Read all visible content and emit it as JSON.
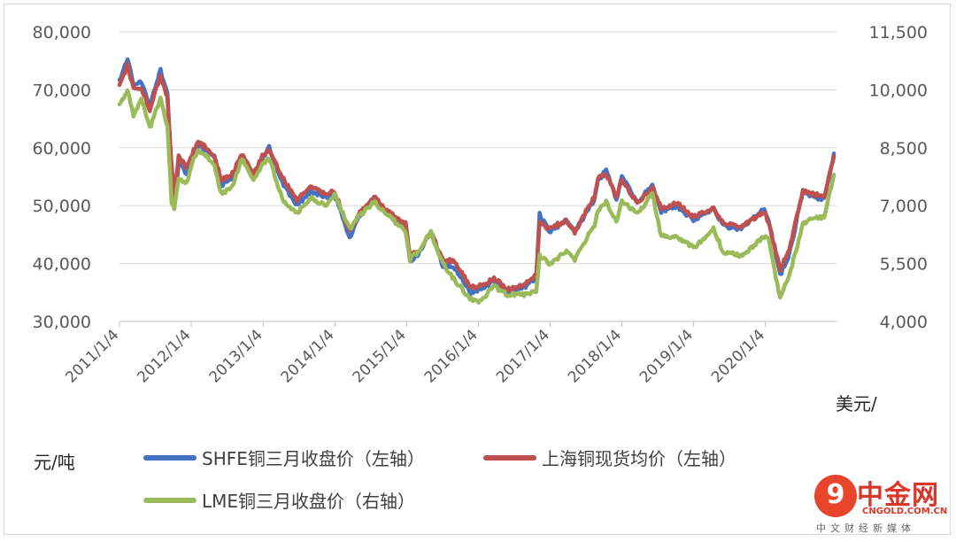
{
  "chart_data": {
    "type": "line",
    "left_axis": {
      "unit": "元/吨",
      "ylim": [
        30000,
        80000
      ],
      "ticks": [
        "80,000",
        "70,000",
        "60,000",
        "50,000",
        "40,000",
        "30,000"
      ],
      "tick_values": [
        80000,
        70000,
        60000,
        50000,
        40000,
        30000
      ]
    },
    "right_axis": {
      "unit": "美元/",
      "ylim": [
        4000,
        11500
      ],
      "ticks": [
        "11,500",
        "10,000",
        "8,500",
        "7,000",
        "5,500",
        "4,000"
      ],
      "tick_values": [
        11500,
        10000,
        8500,
        7000,
        5500,
        4000
      ]
    },
    "x_ticks": [
      "2011/1/4",
      "2012/1/4",
      "2013/1/4",
      "2014/1/4",
      "2015/1/4",
      "2016/1/4",
      "2017/1/4",
      "2018/1/4",
      "2019/1/4",
      "2020/1/4"
    ],
    "x_range": [
      "2011/1/4",
      "2020/12/31"
    ],
    "grid": "horizontal",
    "legend_position": "bottom",
    "series": [
      {
        "name": "SHFE铜三月收盘价（左轴）",
        "axis": "left",
        "color": "#4472c4",
        "points": [
          [
            "2011/1/4",
            71500
          ],
          [
            "2011/2/14",
            75500
          ],
          [
            "2011/3/16",
            71000
          ],
          [
            "2011/4/25",
            71500
          ],
          [
            "2011/6/7",
            67000
          ],
          [
            "2011/7/18",
            72000
          ],
          [
            "2011/8/1",
            73300
          ],
          [
            "2011/9/5",
            69500
          ],
          [
            "2011/9/26",
            56000
          ],
          [
            "2011/10/10",
            50000
          ],
          [
            "2011/11/1",
            57500
          ],
          [
            "2011/12/12",
            55500
          ],
          [
            "2012/1/16",
            59000
          ],
          [
            "2012/2/8",
            60500
          ],
          [
            "2012/3/20",
            59500
          ],
          [
            "2012/5/2",
            58500
          ],
          [
            "2012/6/4",
            53500
          ],
          [
            "2012/8/1",
            55000
          ],
          [
            "2012/9/18",
            58500
          ],
          [
            "2012/11/16",
            55000
          ],
          [
            "2013/1/7",
            58500
          ],
          [
            "2013/2/4",
            60000
          ],
          [
            "2013/4/18",
            53500
          ],
          [
            "2013/6/25",
            50000
          ],
          [
            "2013/9/2",
            52500
          ],
          [
            "2013/11/19",
            51500
          ],
          [
            "2014/1/2",
            52000
          ],
          [
            "2014/3/20",
            44500
          ],
          [
            "2014/5/5",
            48000
          ],
          [
            "2014/7/22",
            51500
          ],
          [
            "2014/9/25",
            48500
          ],
          [
            "2014/12/30",
            46500
          ],
          [
            "2015/1/21",
            40500
          ],
          [
            "2015/3/2",
            41500
          ],
          [
            "2015/5/8",
            45500
          ],
          [
            "2015/7/8",
            39500
          ],
          [
            "2015/9/1",
            39500
          ],
          [
            "2015/11/24",
            35000
          ],
          [
            "2016/1/6",
            35500
          ],
          [
            "2016/3/24",
            37000
          ],
          [
            "2016/5/31",
            35000
          ],
          [
            "2016/9/1",
            36000
          ],
          [
            "2016/10/25",
            37500
          ],
          [
            "2016/11/11",
            48500
          ],
          [
            "2016/12/30",
            45500
          ],
          [
            "2017/3/27",
            47500
          ],
          [
            "2017/5/9",
            45500
          ],
          [
            "2017/8/16",
            51000
          ],
          [
            "2017/9/5",
            54500
          ],
          [
            "2017/10/16",
            56000
          ],
          [
            "2017/12/7",
            51000
          ],
          [
            "2018/1/4",
            55000
          ],
          [
            "2018/3/23",
            50500
          ],
          [
            "2018/6/8",
            53500
          ],
          [
            "2018/7/23",
            49000
          ],
          [
            "2018/10/10",
            50000
          ],
          [
            "2019/1/3",
            47500
          ],
          [
            "2019/4/15",
            49500
          ],
          [
            "2019/6/3",
            46500
          ],
          [
            "2019/9/3",
            46000
          ],
          [
            "2019/12/30",
            49500
          ],
          [
            "2020/1/21",
            47500
          ],
          [
            "2020/3/19",
            38000
          ],
          [
            "2020/5/5",
            41500
          ],
          [
            "2020/7/13",
            52500
          ],
          [
            "2020/9/8",
            51500
          ],
          [
            "2020/10/29",
            51000
          ],
          [
            "2020/12/18",
            59000
          ]
        ]
      },
      {
        "name": "上海铜现货均价（左轴）",
        "axis": "left",
        "color": "#c0504d",
        "points": [
          [
            "2011/1/4",
            70500
          ],
          [
            "2011/2/14",
            74500
          ],
          [
            "2011/3/16",
            70000
          ],
          [
            "2011/4/25",
            70500
          ],
          [
            "2011/6/7",
            66500
          ],
          [
            "2011/7/18",
            71000
          ],
          [
            "2011/8/1",
            72500
          ],
          [
            "2011/9/5",
            68500
          ],
          [
            "2011/9/26",
            57000
          ],
          [
            "2011/10/10",
            51500
          ],
          [
            "2011/11/1",
            58500
          ],
          [
            "2011/12/12",
            56500
          ],
          [
            "2012/1/16",
            59500
          ],
          [
            "2012/2/8",
            61000
          ],
          [
            "2012/3/20",
            60000
          ],
          [
            "2012/5/2",
            58500
          ],
          [
            "2012/6/4",
            54500
          ],
          [
            "2012/8/1",
            55500
          ],
          [
            "2012/9/18",
            59000
          ],
          [
            "2012/11/16",
            55500
          ],
          [
            "2013/1/7",
            59000
          ],
          [
            "2013/2/4",
            59500
          ],
          [
            "2013/4/18",
            54500
          ],
          [
            "2013/6/25",
            51000
          ],
          [
            "2013/9/2",
            53500
          ],
          [
            "2013/11/19",
            52000
          ],
          [
            "2014/1/2",
            52500
          ],
          [
            "2014/3/20",
            45500
          ],
          [
            "2014/5/5",
            48500
          ],
          [
            "2014/7/22",
            51500
          ],
          [
            "2014/9/25",
            49000
          ],
          [
            "2014/12/30",
            47000
          ],
          [
            "2015/1/21",
            41500
          ],
          [
            "2015/3/2",
            42000
          ],
          [
            "2015/5/8",
            45500
          ],
          [
            "2015/7/8",
            40500
          ],
          [
            "2015/9/1",
            40500
          ],
          [
            "2015/11/24",
            36000
          ],
          [
            "2016/1/6",
            36000
          ],
          [
            "2016/3/24",
            37500
          ],
          [
            "2016/5/31",
            35500
          ],
          [
            "2016/9/1",
            36500
          ],
          [
            "2016/10/25",
            38000
          ],
          [
            "2016/11/11",
            47000
          ],
          [
            "2016/12/30",
            46000
          ],
          [
            "2017/3/27",
            47500
          ],
          [
            "2017/5/9",
            45500
          ],
          [
            "2017/8/16",
            51500
          ],
          [
            "2017/9/5",
            55000
          ],
          [
            "2017/10/16",
            55500
          ],
          [
            "2017/12/7",
            51500
          ],
          [
            "2018/1/4",
            54500
          ],
          [
            "2018/3/23",
            50500
          ],
          [
            "2018/6/8",
            53000
          ],
          [
            "2018/7/23",
            49500
          ],
          [
            "2018/10/10",
            50500
          ],
          [
            "2019/1/3",
            48000
          ],
          [
            "2019/4/15",
            49500
          ],
          [
            "2019/6/3",
            47000
          ],
          [
            "2019/9/3",
            46500
          ],
          [
            "2019/12/30",
            49000
          ],
          [
            "2020/1/21",
            47000
          ],
          [
            "2020/3/19",
            39000
          ],
          [
            "2020/5/5",
            42500
          ],
          [
            "2020/7/13",
            52500
          ],
          [
            "2020/9/8",
            52000
          ],
          [
            "2020/10/29",
            51500
          ],
          [
            "2020/12/18",
            58500
          ]
        ]
      },
      {
        "name": "LME铜三月收盘价（右轴）",
        "axis": "right",
        "color": "#9bbb59",
        "points": [
          [
            "2011/1/4",
            9600
          ],
          [
            "2011/2/14",
            10000
          ],
          [
            "2011/3/16",
            9300
          ],
          [
            "2011/4/25",
            9800
          ],
          [
            "2011/6/7",
            9000
          ],
          [
            "2011/7/18",
            9600
          ],
          [
            "2011/8/1",
            9800
          ],
          [
            "2011/9/5",
            9000
          ],
          [
            "2011/9/26",
            7100
          ],
          [
            "2011/10/10",
            6900
          ],
          [
            "2011/11/1",
            7700
          ],
          [
            "2011/12/12",
            7600
          ],
          [
            "2012/1/16",
            8200
          ],
          [
            "2012/2/8",
            8400
          ],
          [
            "2012/3/20",
            8300
          ],
          [
            "2012/5/2",
            8000
          ],
          [
            "2012/6/4",
            7300
          ],
          [
            "2012/8/1",
            7500
          ],
          [
            "2012/9/18",
            8200
          ],
          [
            "2012/11/16",
            7700
          ],
          [
            "2013/1/7",
            8100
          ],
          [
            "2013/2/4",
            8200
          ],
          [
            "2013/4/18",
            7100
          ],
          [
            "2013/6/25",
            6800
          ],
          [
            "2013/9/2",
            7200
          ],
          [
            "2013/11/19",
            7000
          ],
          [
            "2014/1/2",
            7300
          ],
          [
            "2014/3/20",
            6400
          ],
          [
            "2014/5/5",
            6700
          ],
          [
            "2014/7/22",
            7100
          ],
          [
            "2014/9/25",
            6800
          ],
          [
            "2014/12/30",
            6300
          ],
          [
            "2015/1/21",
            5600
          ],
          [
            "2015/3/2",
            5800
          ],
          [
            "2015/5/8",
            6300
          ],
          [
            "2015/7/8",
            5500
          ],
          [
            "2015/9/1",
            5100
          ],
          [
            "2015/11/24",
            4600
          ],
          [
            "2016/1/6",
            4500
          ],
          [
            "2016/3/24",
            4900
          ],
          [
            "2016/5/31",
            4700
          ],
          [
            "2016/9/1",
            4700
          ],
          [
            "2016/10/25",
            4800
          ],
          [
            "2016/11/11",
            5700
          ],
          [
            "2016/12/30",
            5500
          ],
          [
            "2017/3/27",
            5800
          ],
          [
            "2017/5/9",
            5600
          ],
          [
            "2017/8/16",
            6500
          ],
          [
            "2017/9/5",
            6900
          ],
          [
            "2017/10/16",
            7100
          ],
          [
            "2017/12/7",
            6600
          ],
          [
            "2018/1/4",
            7100
          ],
          [
            "2018/3/23",
            6800
          ],
          [
            "2018/6/8",
            7300
          ],
          [
            "2018/7/23",
            6200
          ],
          [
            "2018/10/10",
            6200
          ],
          [
            "2019/1/3",
            5900
          ],
          [
            "2019/4/15",
            6400
          ],
          [
            "2019/6/3",
            5800
          ],
          [
            "2019/9/3",
            5700
          ],
          [
            "2019/12/30",
            6200
          ],
          [
            "2020/1/21",
            6100
          ],
          [
            "2020/3/19",
            4600
          ],
          [
            "2020/5/5",
            5200
          ],
          [
            "2020/7/13",
            6500
          ],
          [
            "2020/9/8",
            6700
          ],
          [
            "2020/10/29",
            6700
          ],
          [
            "2020/12/18",
            7800
          ]
        ]
      }
    ]
  },
  "logo": {
    "name": "中金网",
    "site": "CNGOLD.COM.CN",
    "tagline": "中文财经新媒体"
  }
}
